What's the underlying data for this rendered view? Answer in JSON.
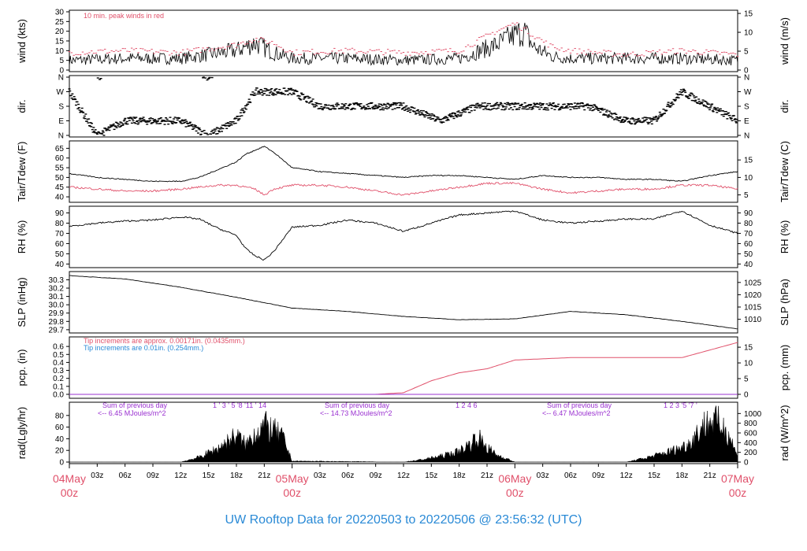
{
  "title": "UW Rooftop Data for 20220503  to  20220506 @ 23:56:32  (UTC)",
  "colors": {
    "title": "#2a8ad6",
    "date": "#e0506a",
    "peak": "#e0506a",
    "rain": "#e0506a",
    "note_blue": "#2a8ad6",
    "sum": "#9a30d0",
    "trace": "#000000"
  },
  "x_axis": {
    "hour_ticks": [
      "03z",
      "06z",
      "09z",
      "12z",
      "15z",
      "18z",
      "21z",
      "03z",
      "06z",
      "09z",
      "12z",
      "15z",
      "18z",
      "21z",
      "03z",
      "06z",
      "09z",
      "12z",
      "15z",
      "18z",
      "21z"
    ],
    "date_labels": [
      {
        "day": "04May",
        "hour": "00z"
      },
      {
        "day": "05May",
        "hour": "00z"
      },
      {
        "day": "06May",
        "hour": "00z"
      },
      {
        "day": "07May",
        "hour": "00z"
      }
    ]
  },
  "panels": {
    "wind": {
      "left_label": "wind (kts)",
      "right_label": "wind (m/s)",
      "note": "10 min. peak winds in red",
      "left_ticks": [
        "0",
        "5",
        "10",
        "15",
        "20",
        "25",
        "30"
      ],
      "right_ticks": [
        "0",
        "5",
        "10",
        "15"
      ]
    },
    "dir": {
      "left_label": "dir.",
      "right_label": "dir.",
      "ticks": [
        "N",
        "E",
        "S",
        "W",
        "N"
      ]
    },
    "temp": {
      "left_label": "Tair/Tdew (F)",
      "right_label": "Tair/Tdew (C)",
      "left_ticks": [
        "40",
        "45",
        "50",
        "55",
        "60",
        "65"
      ],
      "right_ticks": [
        "5",
        "10",
        "15"
      ]
    },
    "rh": {
      "left_label": "RH (%)",
      "right_label": "RH (%)",
      "left_ticks": [
        "40",
        "50",
        "60",
        "70",
        "80",
        "90"
      ],
      "right_ticks": [
        "40",
        "50",
        "60",
        "70",
        "80",
        "90"
      ]
    },
    "slp": {
      "left_label": "SLP (inHg)",
      "right_label": "SLP (hPa)",
      "left_ticks": [
        "29.7",
        "29.8",
        "29.9",
        "30.0",
        "30.1",
        "30.2",
        "30.3"
      ],
      "right_ticks": [
        "1010",
        "1015",
        "1020",
        "1025"
      ]
    },
    "pcp": {
      "left_label": "pcp. (in)",
      "right_label": "pcp. (mm)",
      "left_ticks": [
        "0.0",
        "0.1",
        "0.2",
        "0.3",
        "0.4",
        "0.5",
        "0.6"
      ],
      "right_ticks": [
        "0",
        "5",
        "10",
        "15"
      ],
      "note1": "Tip increments are approx. 0.00171in. (0.0435mm.)",
      "note2": "Tip increments are 0.01in. (0.254mm.)"
    },
    "rad": {
      "left_label": "rad(Lgly/hr)",
      "right_label": "rad (W/m^2)",
      "left_ticks": [
        "0",
        "20",
        "40",
        "60",
        "80"
      ],
      "right_ticks": [
        "0",
        "200",
        "400",
        "600",
        "800",
        "1000"
      ],
      "sums": [
        {
          "heading": "Sum of previous day",
          "value": "<-- 6.45 MJoules/m^2",
          "digits": "1  '  3  '         5  '8  '11  '     14"
        },
        {
          "heading": "Sum of previous day",
          "value": "<-- 14.73 MJoules/m^2",
          "digits": "1     2     4        6"
        },
        {
          "heading": "Sum of previous day",
          "value": "<-- 6.47 MJoules/m^2",
          "digits": "1     2         3  '5  '7  '"
        }
      ]
    }
  },
  "chart_data": {
    "type": "line",
    "x_unit": "hours since 2022-05-04 00z",
    "x_range": [
      0,
      72
    ],
    "series": [
      {
        "name": "10 min. peak winds in red",
        "panel": "wind",
        "x": [
          0,
          6,
          12,
          18,
          20,
          22,
          24,
          30,
          36,
          42,
          46,
          48,
          50,
          52,
          54,
          60,
          66,
          72
        ],
        "values": [
          9,
          10,
          9,
          13,
          16,
          14,
          9,
          10,
          9,
          10,
          20,
          24,
          18,
          12,
          10,
          8,
          10,
          8
        ]
      },
      {
        "panel": "wind",
        "x": [
          0,
          6,
          12,
          15,
          18,
          20,
          22,
          24,
          30,
          36,
          42,
          46,
          48,
          49,
          50,
          52,
          54,
          60,
          66,
          72
        ],
        "values": [
          5,
          6,
          6,
          8,
          10,
          14,
          9,
          6,
          6,
          5,
          6,
          13,
          18,
          20,
          12,
          7,
          6,
          6,
          6,
          5
        ]
      },
      {
        "panel": "dir",
        "x": [
          0,
          3,
          6,
          9,
          12,
          15,
          18,
          20,
          21,
          24,
          27,
          30,
          33,
          36,
          40,
          44,
          48,
          52,
          56,
          60,
          63,
          66,
          69,
          72
        ],
        "values": [
          "W",
          "N",
          "E",
          "E",
          "E",
          "N",
          "E",
          "W",
          "W",
          "W",
          "S",
          "S",
          "S",
          "S",
          "E",
          "S",
          "S",
          "S",
          "S",
          "E",
          "E",
          "W",
          "S",
          "E"
        ]
      },
      {
        "panel": "temp",
        "x": [
          0,
          3,
          6,
          9,
          12,
          14,
          16,
          18,
          19,
          20,
          21,
          22,
          24,
          27,
          30,
          33,
          36,
          39,
          42,
          45,
          48,
          51,
          54,
          57,
          60,
          63,
          66,
          69,
          72
        ],
        "values": [
          52,
          50,
          49,
          48,
          48,
          50,
          54,
          58,
          62,
          64,
          66,
          63,
          55,
          53,
          52,
          51,
          50,
          51,
          51,
          50,
          49,
          51,
          50,
          50,
          49,
          49,
          48,
          51,
          53
        ]
      },
      {
        "panel": "temp",
        "x": [
          0,
          3,
          6,
          9,
          12,
          14,
          16,
          18,
          19,
          20,
          21,
          22,
          24,
          27,
          30,
          33,
          36,
          39,
          42,
          45,
          48,
          51,
          54,
          57,
          60,
          63,
          66,
          69,
          72
        ],
        "values": [
          45,
          44,
          43,
          43,
          44,
          45,
          46,
          46,
          45,
          44,
          41,
          44,
          46,
          46,
          45,
          43,
          41,
          43,
          45,
          47,
          47,
          44,
          42,
          43,
          44,
          44,
          46,
          46,
          44
        ]
      },
      {
        "panel": "rh",
        "x": [
          0,
          3,
          6,
          9,
          12,
          14,
          16,
          18,
          19,
          20,
          21,
          22,
          24,
          27,
          30,
          33,
          36,
          39,
          42,
          45,
          48,
          51,
          54,
          57,
          60,
          63,
          66,
          69,
          72
        ],
        "values": [
          77,
          80,
          82,
          83,
          86,
          84,
          75,
          68,
          55,
          48,
          44,
          52,
          76,
          78,
          83,
          80,
          72,
          80,
          88,
          90,
          92,
          83,
          80,
          82,
          84,
          84,
          92,
          78,
          70
        ]
      },
      {
        "panel": "slp",
        "x": [
          0,
          6,
          12,
          18,
          24,
          30,
          36,
          42,
          48,
          54,
          60,
          66,
          72
        ],
        "values": [
          30.35,
          30.31,
          30.21,
          30.09,
          29.96,
          29.92,
          29.86,
          29.82,
          29.83,
          29.92,
          29.88,
          29.8,
          29.71
        ]
      },
      {
        "panel": "pcp",
        "x": [
          0,
          30,
          33,
          36,
          39,
          42,
          45,
          48,
          54,
          60,
          63,
          66,
          72
        ],
        "values": [
          0,
          0,
          0,
          0.02,
          0.17,
          0.27,
          0.32,
          0.43,
          0.46,
          0.46,
          0.46,
          0.46,
          0.65
        ]
      },
      {
        "panel": "rad",
        "x": [
          0,
          2,
          12,
          14,
          16,
          18,
          19,
          20,
          21,
          22,
          23,
          24,
          36,
          38,
          40,
          42,
          43,
          44,
          45,
          46,
          47,
          48,
          60,
          62,
          64,
          66,
          67,
          68,
          69,
          70,
          71,
          72
        ],
        "values": [
          0,
          0,
          0,
          10,
          28,
          55,
          35,
          60,
          75,
          65,
          50,
          2,
          0,
          5,
          12,
          22,
          35,
          52,
          30,
          15,
          8,
          0,
          0,
          8,
          18,
          30,
          42,
          70,
          85,
          80,
          60,
          10
        ]
      }
    ]
  }
}
